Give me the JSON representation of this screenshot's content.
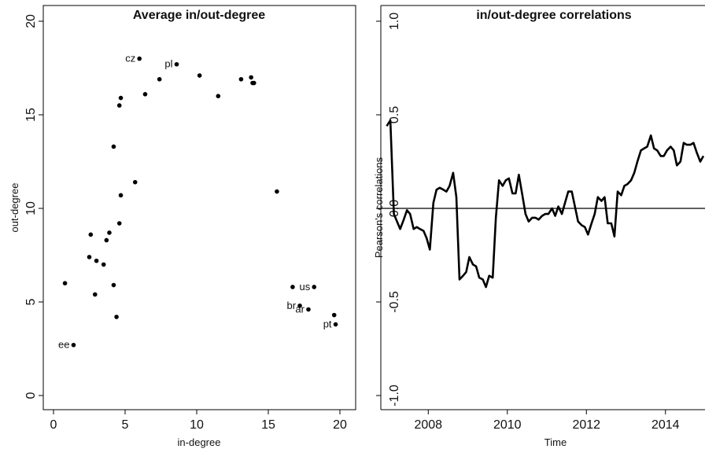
{
  "chart_data": [
    {
      "type": "scatter",
      "title": "Average in/out-degree",
      "xlabel": "in-degree",
      "ylabel": "out-degree",
      "xlim": [
        0,
        20
      ],
      "ylim": [
        0,
        20
      ],
      "xticks": [
        "0",
        "5",
        "10",
        "15",
        "20"
      ],
      "yticks": [
        "0",
        "5",
        "10",
        "15",
        "20"
      ],
      "points": [
        {
          "x": 1.4,
          "y": 2.7,
          "label": "ee"
        },
        {
          "x": 0.8,
          "y": 6.0,
          "label": ""
        },
        {
          "x": 2.5,
          "y": 7.4,
          "label": ""
        },
        {
          "x": 2.6,
          "y": 8.6,
          "label": ""
        },
        {
          "x": 3.0,
          "y": 7.2,
          "label": ""
        },
        {
          "x": 2.9,
          "y": 5.4,
          "label": ""
        },
        {
          "x": 3.5,
          "y": 7.0,
          "label": ""
        },
        {
          "x": 3.7,
          "y": 8.3,
          "label": ""
        },
        {
          "x": 3.9,
          "y": 8.7,
          "label": ""
        },
        {
          "x": 4.2,
          "y": 5.9,
          "label": ""
        },
        {
          "x": 4.4,
          "y": 4.2,
          "label": ""
        },
        {
          "x": 4.2,
          "y": 13.3,
          "label": ""
        },
        {
          "x": 4.6,
          "y": 9.2,
          "label": ""
        },
        {
          "x": 4.7,
          "y": 10.7,
          "label": ""
        },
        {
          "x": 4.6,
          "y": 15.5,
          "label": ""
        },
        {
          "x": 4.7,
          "y": 15.9,
          "label": ""
        },
        {
          "x": 5.7,
          "y": 11.4,
          "label": ""
        },
        {
          "x": 6.0,
          "y": 18.0,
          "label": "cz"
        },
        {
          "x": 6.4,
          "y": 16.1,
          "label": ""
        },
        {
          "x": 7.4,
          "y": 16.9,
          "label": ""
        },
        {
          "x": 8.6,
          "y": 17.7,
          "label": "pl"
        },
        {
          "x": 10.2,
          "y": 17.1,
          "label": ""
        },
        {
          "x": 11.5,
          "y": 16.0,
          "label": ""
        },
        {
          "x": 13.1,
          "y": 16.9,
          "label": ""
        },
        {
          "x": 13.8,
          "y": 17.0,
          "label": ""
        },
        {
          "x": 13.9,
          "y": 16.7,
          "label": ""
        },
        {
          "x": 14.0,
          "y": 16.7,
          "label": ""
        },
        {
          "x": 15.6,
          "y": 10.9,
          "label": ""
        },
        {
          "x": 16.7,
          "y": 5.8,
          "label": ""
        },
        {
          "x": 18.2,
          "y": 5.8,
          "label": "us"
        },
        {
          "x": 17.2,
          "y": 4.8,
          "label": "br"
        },
        {
          "x": 17.8,
          "y": 4.6,
          "label": "ar"
        },
        {
          "x": 19.6,
          "y": 4.3,
          "label": ""
        },
        {
          "x": 19.7,
          "y": 3.8,
          "label": "pt"
        }
      ]
    },
    {
      "type": "line",
      "title": "in/out-degree correlations",
      "xlabel": "Time",
      "ylabel": "Pearson's correlations",
      "xlim": [
        2006.8,
        2015.0
      ],
      "ylim": [
        -1.0,
        1.0
      ],
      "xticks": [
        "2008",
        "2010",
        "2012",
        "2014"
      ],
      "yticks": [
        "-1.0",
        "-0.5",
        "0.0",
        "0.5",
        "1.0"
      ],
      "reference_line": 0,
      "series": [
        {
          "x": [
            2006.95,
            2007.04,
            2007.13,
            2007.21,
            2007.29,
            2007.38,
            2007.46,
            2007.54,
            2007.63,
            2007.71,
            2007.79,
            2007.88,
            2007.96,
            2008.04,
            2008.13,
            2008.21,
            2008.29,
            2008.38,
            2008.46,
            2008.54,
            2008.63,
            2008.71,
            2008.79,
            2008.88,
            2008.96,
            2009.04,
            2009.13,
            2009.21,
            2009.29,
            2009.38,
            2009.46,
            2009.54,
            2009.63,
            2009.71,
            2009.79,
            2009.88,
            2009.96,
            2010.04,
            2010.13,
            2010.21,
            2010.29,
            2010.38,
            2010.46,
            2010.54,
            2010.63,
            2010.71,
            2010.79,
            2010.88,
            2010.96,
            2011.04,
            2011.13,
            2011.21,
            2011.29,
            2011.38,
            2011.46,
            2011.54,
            2011.63,
            2011.71,
            2011.79,
            2011.88,
            2011.96,
            2012.04,
            2012.13,
            2012.21,
            2012.29,
            2012.38,
            2012.46,
            2012.54,
            2012.63,
            2012.71,
            2012.79,
            2012.88,
            2012.96,
            2013.04,
            2013.13,
            2013.21,
            2013.29,
            2013.38,
            2013.46,
            2013.54,
            2013.63,
            2013.71,
            2013.79,
            2013.88,
            2013.96,
            2014.04,
            2014.13,
            2014.21,
            2014.29,
            2014.38,
            2014.46,
            2014.54,
            2014.63,
            2014.71,
            2014.79,
            2014.88,
            2014.96
          ],
          "values": [
            0.44,
            0.47,
            -0.03,
            -0.07,
            -0.11,
            -0.06,
            -0.01,
            -0.03,
            -0.11,
            -0.1,
            -0.11,
            -0.12,
            -0.16,
            -0.22,
            0.03,
            0.1,
            0.11,
            0.1,
            0.09,
            0.12,
            0.19,
            0.06,
            -0.38,
            -0.36,
            -0.34,
            -0.26,
            -0.3,
            -0.31,
            -0.37,
            -0.38,
            -0.42,
            -0.36,
            -0.37,
            -0.05,
            0.15,
            0.12,
            0.15,
            0.16,
            0.08,
            0.08,
            0.18,
            0.07,
            -0.03,
            -0.07,
            -0.05,
            -0.05,
            -0.06,
            -0.04,
            -0.03,
            -0.03,
            0.0,
            -0.04,
            0.01,
            -0.03,
            0.03,
            0.09,
            0.09,
            0.01,
            -0.07,
            -0.09,
            -0.1,
            -0.14,
            -0.08,
            -0.03,
            0.06,
            0.04,
            0.06,
            -0.08,
            -0.08,
            -0.15,
            0.09,
            0.07,
            0.12,
            0.13,
            0.15,
            0.19,
            0.25,
            0.31,
            0.32,
            0.33,
            0.39,
            0.32,
            0.31,
            0.28,
            0.28,
            0.31,
            0.33,
            0.31,
            0.23,
            0.25,
            0.35,
            0.34,
            0.34,
            0.35,
            0.3,
            0.25,
            0.28
          ]
        }
      ]
    }
  ]
}
